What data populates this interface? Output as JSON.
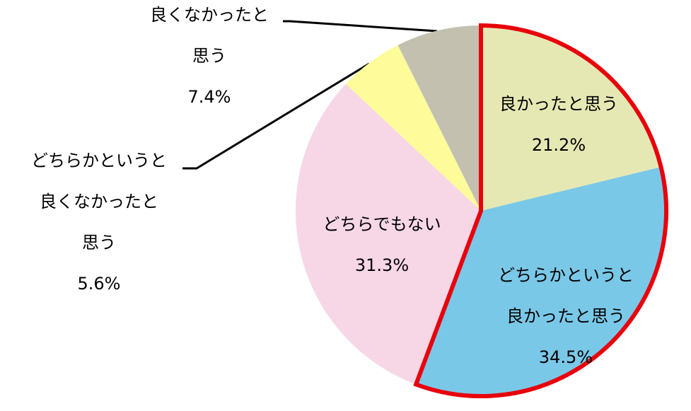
{
  "chart_data": {
    "type": "pie",
    "categories": [
      [
        "良かったと思う"
      ],
      [
        "どちらかというと",
        "良かったと思う"
      ],
      [
        "どちらでもない"
      ],
      [
        "どちらかというと",
        "良くなかったと",
        "思う"
      ],
      [
        "良くなかったと",
        "思う"
      ]
    ],
    "values": [
      21.2,
      34.5,
      31.3,
      5.6,
      7.4
    ],
    "value_labels": [
      "21.2%",
      "34.5%",
      "31.3%",
      "5.6%",
      "7.4%"
    ],
    "colors": [
      "#e6e8b4",
      "#7ac8e8",
      "#f7d7e6",
      "#fdfb9a",
      "#c3c0b0"
    ],
    "highlight": [
      0,
      1
    ],
    "highlight_color": "#e8000b"
  }
}
